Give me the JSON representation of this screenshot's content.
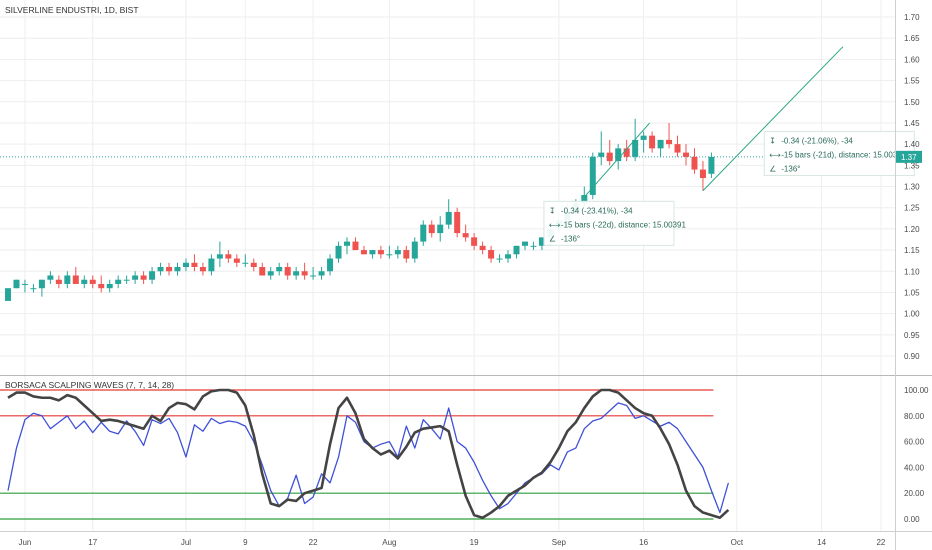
{
  "chart_data": [
    {
      "type": "candlestick",
      "title": "SILVERLINE ENDUSTRI, 1D, BIST",
      "ylim": [
        0.85,
        1.72
      ],
      "y_ticks": [
        "1.70",
        "1.65",
        "1.60",
        "1.55",
        "1.50",
        "1.45",
        "1.40",
        "1.35",
        "1.30",
        "1.25",
        "1.20",
        "1.15",
        "1.10",
        "1.05",
        "1.00",
        "0.95",
        "0.90"
      ],
      "last_price_label": "1.37",
      "last_price": 1.37,
      "candles": [
        [
          1.03,
          1.06,
          1.03,
          1.06
        ],
        [
          1.06,
          1.08,
          1.06,
          1.08
        ],
        [
          1.07,
          1.08,
          1.05,
          1.07
        ],
        [
          1.06,
          1.07,
          1.05,
          1.06
        ],
        [
          1.06,
          1.08,
          1.04,
          1.08
        ],
        [
          1.08,
          1.1,
          1.07,
          1.09
        ],
        [
          1.08,
          1.09,
          1.06,
          1.07
        ],
        [
          1.07,
          1.1,
          1.06,
          1.09
        ],
        [
          1.09,
          1.11,
          1.07,
          1.07
        ],
        [
          1.07,
          1.09,
          1.06,
          1.08
        ],
        [
          1.08,
          1.09,
          1.06,
          1.07
        ],
        [
          1.07,
          1.09,
          1.05,
          1.06
        ],
        [
          1.06,
          1.08,
          1.05,
          1.07
        ],
        [
          1.07,
          1.09,
          1.06,
          1.08
        ],
        [
          1.08,
          1.09,
          1.07,
          1.08
        ],
        [
          1.08,
          1.1,
          1.07,
          1.09
        ],
        [
          1.09,
          1.1,
          1.07,
          1.08
        ],
        [
          1.08,
          1.11,
          1.07,
          1.1
        ],
        [
          1.1,
          1.12,
          1.09,
          1.11
        ],
        [
          1.11,
          1.12,
          1.09,
          1.1
        ],
        [
          1.1,
          1.12,
          1.09,
          1.11
        ],
        [
          1.11,
          1.13,
          1.1,
          1.12
        ],
        [
          1.12,
          1.14,
          1.1,
          1.11
        ],
        [
          1.11,
          1.12,
          1.09,
          1.1
        ],
        [
          1.1,
          1.14,
          1.09,
          1.13
        ],
        [
          1.13,
          1.17,
          1.11,
          1.14
        ],
        [
          1.14,
          1.15,
          1.12,
          1.13
        ],
        [
          1.13,
          1.14,
          1.11,
          1.12
        ],
        [
          1.12,
          1.14,
          1.11,
          1.12
        ],
        [
          1.12,
          1.13,
          1.1,
          1.11
        ],
        [
          1.11,
          1.12,
          1.09,
          1.09
        ],
        [
          1.09,
          1.11,
          1.08,
          1.1
        ],
        [
          1.1,
          1.12,
          1.09,
          1.11
        ],
        [
          1.11,
          1.12,
          1.08,
          1.09
        ],
        [
          1.09,
          1.11,
          1.08,
          1.1
        ],
        [
          1.1,
          1.12,
          1.08,
          1.09
        ],
        [
          1.09,
          1.11,
          1.08,
          1.09
        ],
        [
          1.09,
          1.11,
          1.08,
          1.1
        ],
        [
          1.1,
          1.14,
          1.09,
          1.13
        ],
        [
          1.13,
          1.17,
          1.12,
          1.16
        ],
        [
          1.16,
          1.18,
          1.14,
          1.17
        ],
        [
          1.17,
          1.18,
          1.15,
          1.15
        ],
        [
          1.15,
          1.16,
          1.14,
          1.14
        ],
        [
          1.14,
          1.15,
          1.13,
          1.15
        ],
        [
          1.15,
          1.16,
          1.13,
          1.14
        ],
        [
          1.14,
          1.16,
          1.13,
          1.14
        ],
        [
          1.14,
          1.16,
          1.13,
          1.15
        ],
        [
          1.15,
          1.16,
          1.12,
          1.13
        ],
        [
          1.13,
          1.18,
          1.12,
          1.17
        ],
        [
          1.17,
          1.22,
          1.16,
          1.21
        ],
        [
          1.21,
          1.22,
          1.18,
          1.19
        ],
        [
          1.19,
          1.23,
          1.17,
          1.21
        ],
        [
          1.21,
          1.27,
          1.2,
          1.24
        ],
        [
          1.24,
          1.25,
          1.18,
          1.19
        ],
        [
          1.19,
          1.21,
          1.17,
          1.18
        ],
        [
          1.18,
          1.19,
          1.15,
          1.16
        ],
        [
          1.16,
          1.17,
          1.14,
          1.15
        ],
        [
          1.15,
          1.16,
          1.12,
          1.13
        ],
        [
          1.13,
          1.14,
          1.12,
          1.13
        ],
        [
          1.13,
          1.15,
          1.12,
          1.14
        ],
        [
          1.14,
          1.16,
          1.13,
          1.16
        ],
        [
          1.16,
          1.17,
          1.15,
          1.17
        ],
        [
          1.16,
          1.17,
          1.15,
          1.16
        ],
        [
          1.16,
          1.18,
          1.15,
          1.18
        ],
        [
          1.18,
          1.2,
          1.16,
          1.2
        ],
        [
          1.2,
          1.24,
          1.19,
          1.22
        ],
        [
          1.22,
          1.26,
          1.21,
          1.24
        ],
        [
          1.24,
          1.27,
          1.23,
          1.26
        ],
        [
          1.26,
          1.3,
          1.25,
          1.28
        ],
        [
          1.28,
          1.38,
          1.27,
          1.37
        ],
        [
          1.37,
          1.43,
          1.35,
          1.38
        ],
        [
          1.38,
          1.41,
          1.35,
          1.36
        ],
        [
          1.36,
          1.4,
          1.34,
          1.39
        ],
        [
          1.39,
          1.41,
          1.36,
          1.37
        ],
        [
          1.37,
          1.46,
          1.36,
          1.41
        ],
        [
          1.41,
          1.43,
          1.38,
          1.42
        ],
        [
          1.42,
          1.43,
          1.38,
          1.39
        ],
        [
          1.39,
          1.41,
          1.37,
          1.41
        ],
        [
          1.41,
          1.45,
          1.39,
          1.4
        ],
        [
          1.4,
          1.42,
          1.37,
          1.38
        ],
        [
          1.38,
          1.4,
          1.35,
          1.37
        ],
        [
          1.37,
          1.39,
          1.33,
          1.34
        ],
        [
          1.34,
          1.36,
          1.29,
          1.32
        ],
        [
          1.33,
          1.38,
          1.32,
          1.37
        ]
      ],
      "measure_annotations": [
        {
          "lines": [
            "-0.34 (-23.41%), -34",
            "-15 bars (-22d), distance: 15.00391",
            "-136°"
          ]
        },
        {
          "lines": [
            "-0.34 (-21.06%), -34",
            "-15 bars (-21d), distance: 15.00391",
            "-136°"
          ]
        }
      ]
    },
    {
      "type": "line",
      "title": "BORSACA SCALPING WAVES (7, 7, 14, 28)",
      "ylim": [
        -5,
        105
      ],
      "y_ticks": [
        "100.00",
        "80.00",
        "60.00",
        "40.00",
        "20.00",
        "0.00"
      ],
      "levels": [
        {
          "value": 100,
          "color": "#e53935"
        },
        {
          "value": 80,
          "color": "#e53935"
        },
        {
          "value": 20,
          "color": "#2e9e3a"
        },
        {
          "value": 0,
          "color": "#2e9e3a"
        }
      ],
      "series": [
        {
          "color": "#3f51d6",
          "values": [
            22,
            55,
            77,
            82,
            80,
            70,
            75,
            80,
            70,
            76,
            67,
            75,
            68,
            66,
            76,
            68,
            57,
            77,
            74,
            78,
            67,
            48,
            73,
            68,
            78,
            74,
            76,
            75,
            72,
            60,
            42,
            22,
            10,
            16,
            34,
            12,
            17,
            35,
            28,
            48,
            80,
            75,
            60,
            55,
            58,
            60,
            48,
            72,
            55,
            77,
            70,
            62,
            86,
            60,
            55,
            44,
            30,
            18,
            8,
            12,
            20,
            28,
            32,
            35,
            42,
            38,
            52,
            55,
            70,
            76,
            78,
            84,
            90,
            88,
            78,
            80,
            76,
            72,
            75,
            70,
            60,
            50,
            40,
            22,
            5,
            28
          ]
        },
        {
          "color": "#444444",
          "values": [
            94,
            98,
            98,
            95,
            94,
            94,
            92,
            96,
            94,
            88,
            82,
            76,
            77,
            76,
            74,
            72,
            70,
            80,
            76,
            86,
            90,
            89,
            85,
            95,
            99,
            100,
            100,
            98,
            88,
            65,
            35,
            12,
            10,
            15,
            14,
            20,
            22,
            24,
            58,
            86,
            94,
            82,
            62,
            55,
            50,
            53,
            47,
            56,
            67,
            70,
            71,
            72,
            68,
            42,
            18,
            3,
            1,
            5,
            10,
            18,
            22,
            26,
            32,
            36,
            44,
            55,
            68,
            75,
            86,
            95,
            100,
            100,
            98,
            92,
            86,
            82,
            80,
            70,
            58,
            42,
            22,
            10,
            5,
            3,
            1,
            7
          ]
        }
      ]
    }
  ],
  "x_axis": {
    "labels": [
      "Jun",
      "17",
      "Jul",
      "9",
      "22",
      "Aug",
      "19",
      "Sep",
      "16",
      "Oct",
      "14",
      "22"
    ],
    "positions": [
      2,
      10,
      21,
      28,
      36,
      45,
      55,
      65,
      75,
      86,
      96,
      103
    ]
  },
  "colors": {
    "up": "#26a69a",
    "down": "#ef5350",
    "measure": "#2ba584",
    "price_tag": "#26a69a",
    "grid": "#eeeeee",
    "price_line": "#26a69a"
  }
}
